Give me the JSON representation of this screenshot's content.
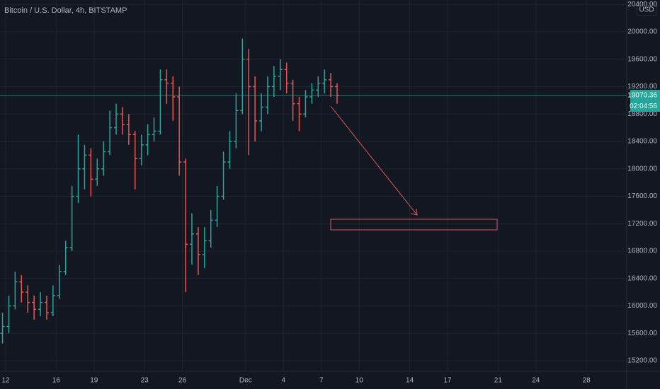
{
  "chart_data": {
    "type": "ohlc",
    "title": "Bitcoin / U.S. Dollar, 4h, BITSTAMP",
    "currency": "USD",
    "last_price": 19070.36,
    "countdown": "02:04:56",
    "up_color": "#26a69a",
    "down_color": "#ef5350",
    "x": [
      11.75,
      12.25,
      12.75,
      13.25,
      13.75,
      14.25,
      14.75,
      15.25,
      15.75,
      16.25,
      16.75,
      17.25,
      17.75,
      18.25,
      18.75,
      19.25,
      19.75,
      20.25,
      20.75,
      21.25,
      21.75,
      22.25,
      22.75,
      23.25,
      23.75,
      24.25,
      24.75,
      25.25,
      25.75,
      26.25,
      26.75,
      27.25,
      27.75,
      28.25,
      28.75,
      29.25,
      29.75,
      30.25,
      30.75,
      31.25,
      31.75,
      32.25,
      32.75,
      33.25,
      33.75,
      34.25,
      34.75,
      35.25,
      35.75,
      36.25,
      36.75,
      37.25,
      37.75,
      38.25
    ],
    "open": [
      15600,
      15700,
      16000,
      16350,
      16200,
      16050,
      15950,
      16050,
      15900,
      16150,
      16500,
      16850,
      17600,
      18000,
      18200,
      17850,
      18000,
      18250,
      18600,
      18800,
      18650,
      18500,
      18150,
      18350,
      18500,
      18550,
      19300,
      19250,
      19050,
      18100,
      16900,
      17050,
      16750,
      16950,
      17250,
      17600,
      18100,
      18400,
      18850,
      19600,
      19200,
      18700,
      18900,
      19200,
      19350,
      19450,
      19250,
      18950,
      18800,
      19050,
      19150,
      19250,
      19300,
      19200
    ],
    "high": [
      15900,
      16150,
      16500,
      16450,
      16300,
      16150,
      16200,
      16150,
      16300,
      16600,
      16950,
      17750,
      18500,
      18350,
      18300,
      18150,
      18400,
      18850,
      18950,
      18900,
      18800,
      18550,
      18500,
      18650,
      18750,
      19450,
      19450,
      19350,
      19200,
      18150,
      17350,
      17150,
      17150,
      17400,
      17750,
      18250,
      18550,
      19100,
      19900,
      19750,
      19350,
      19100,
      19350,
      19500,
      19600,
      19550,
      19300,
      19050,
      19150,
      19250,
      19350,
      19450,
      19400,
      19250
    ],
    "low": [
      15450,
      15600,
      15950,
      16050,
      15900,
      15800,
      15850,
      15800,
      15850,
      16100,
      16450,
      16800,
      17500,
      17700,
      17600,
      17750,
      17900,
      18200,
      18500,
      18500,
      18350,
      17700,
      18050,
      18200,
      18400,
      18500,
      18950,
      18700,
      17900,
      16200,
      16600,
      16450,
      16550,
      16850,
      17150,
      17550,
      18000,
      18300,
      18800,
      18200,
      18400,
      18550,
      18800,
      19050,
      19150,
      19100,
      18700,
      18550,
      18750,
      18950,
      19050,
      19100,
      19050,
      18950
    ],
    "close": [
      15700,
      16000,
      16350,
      16200,
      16050,
      15950,
      16050,
      15900,
      16150,
      16500,
      16850,
      17600,
      18000,
      18200,
      17850,
      18000,
      18250,
      18600,
      18800,
      18650,
      18500,
      18150,
      18350,
      18500,
      18550,
      19300,
      19250,
      19050,
      18100,
      16900,
      17050,
      16750,
      16950,
      17250,
      17600,
      18100,
      18400,
      18850,
      19600,
      19200,
      18700,
      18900,
      19200,
      19350,
      19450,
      19250,
      18950,
      18800,
      19050,
      19150,
      19250,
      19300,
      19200,
      19070.36
    ],
    "xlim": [
      11.55,
      61.19
    ],
    "xticks": [
      12,
      16,
      19,
      23,
      26,
      {
        "value": 31,
        "label": "Dec"
      },
      {
        "value": 34,
        "label": "4"
      },
      {
        "value": 37,
        "label": "7"
      },
      {
        "value": 40,
        "label": "10"
      },
      {
        "value": 44,
        "label": "14"
      },
      {
        "value": 47,
        "label": "17"
      },
      {
        "value": 51,
        "label": "21"
      },
      {
        "value": 54,
        "label": "24"
      },
      {
        "value": 58,
        "label": "28"
      }
    ],
    "ylim": [
      15045,
      20464
    ],
    "yticks": [
      {
        "value": 15200,
        "label": "15200.00"
      },
      {
        "value": 15600,
        "label": "15600.00"
      },
      {
        "value": 16000,
        "label": "16000.00"
      },
      {
        "value": 16400,
        "label": "16400.00"
      },
      {
        "value": 16800,
        "label": "16800.00"
      },
      {
        "value": 17200,
        "label": "17200.00"
      },
      {
        "value": 17600,
        "label": "17600.00"
      },
      {
        "value": 18000,
        "label": "18000.00"
      },
      {
        "value": 18400,
        "label": "18400.00"
      },
      {
        "value": 18800,
        "label": "18800.00"
      },
      {
        "value": 19200,
        "label": "19200.00"
      },
      {
        "value": 19600,
        "label": "19600.00"
      },
      {
        "value": 20000,
        "label": "20000.00"
      },
      {
        "value": 20400,
        "label": "20400.00"
      }
    ],
    "grid": true
  }
}
